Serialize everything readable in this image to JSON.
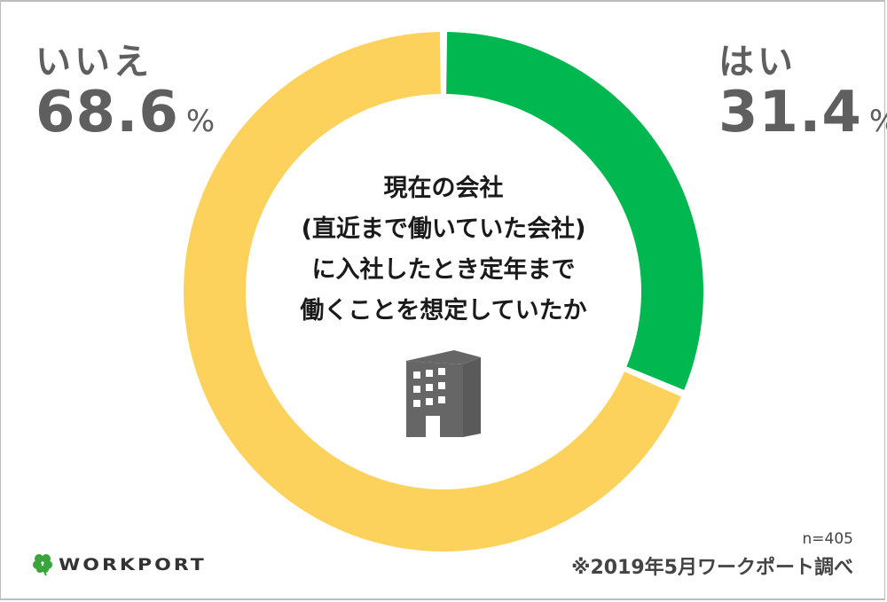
{
  "chart_data": {
    "type": "pie",
    "variant": "donut",
    "title": "現在の会社(直近まで働いていた会社)に入社したとき定年まで働くことを想定していたか",
    "categories": [
      "はい",
      "いいえ"
    ],
    "values": [
      31.4,
      68.6
    ],
    "unit": "%",
    "colors": {
      "はい": "#00b84f",
      "いいえ": "#fdd25c"
    },
    "sample_size": "n=405",
    "legend_position": "labels at top corners"
  },
  "labels": {
    "no": {
      "category": "いいえ",
      "value": "68.6",
      "unit": "%"
    },
    "yes": {
      "category": "はい",
      "value": "31.4",
      "unit": "%"
    }
  },
  "center": {
    "lines": [
      "現在の会社",
      "(直近まで働いていた会社)",
      "に入社したとき定年まで",
      "働くことを想定していたか"
    ],
    "icon": "building-icon"
  },
  "footer": {
    "logo_text": "WORKPORT",
    "logo_icon": "clover-icon",
    "sample": "n=405",
    "source": "※2019年5月ワークポート調べ"
  },
  "colors": {
    "yes": "#00b84f",
    "no": "#fdd25c",
    "label_text": "#5f5f5f",
    "icon": "#666666"
  }
}
